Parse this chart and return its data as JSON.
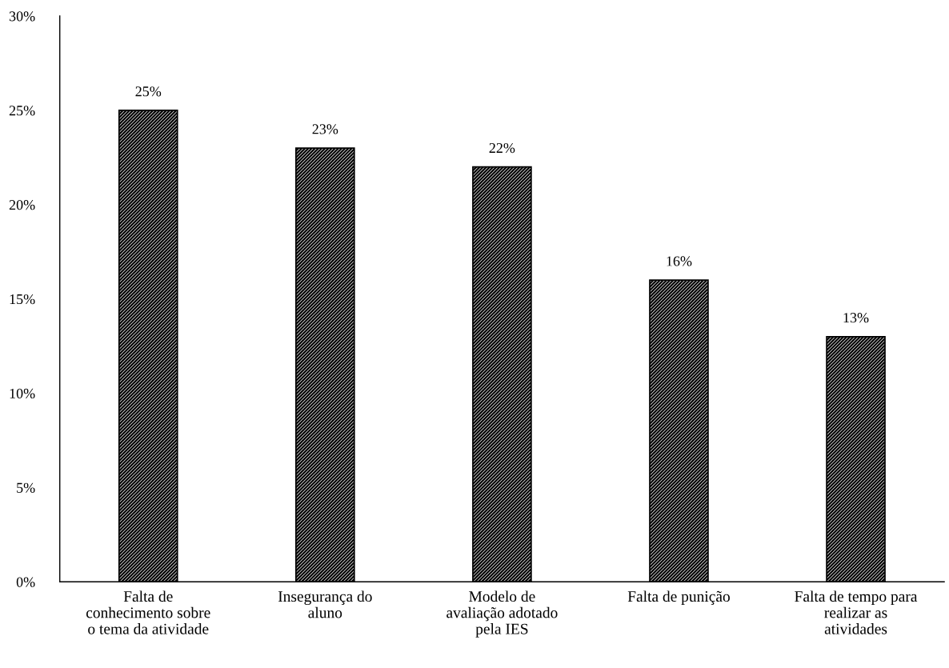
{
  "chart_data": {
    "type": "bar",
    "categories": [
      "Falta de\nconhecimento sobre\no tema da atividade",
      "Insegurança do\naluno",
      "Modelo de\navaliação adotado\npela IES",
      "Falta de punição",
      "Falta de tempo para\nrealizar as\natividades"
    ],
    "values": [
      25,
      23,
      22,
      16,
      13
    ],
    "value_labels": [
      "25%",
      "23%",
      "22%",
      "16%",
      "13%"
    ],
    "color": "#000000",
    "ylim": [
      0,
      30
    ],
    "yticks": [
      {
        "value": 0,
        "label": "0%"
      },
      {
        "value": 5,
        "label": "5%"
      },
      {
        "value": 10,
        "label": "10%"
      },
      {
        "value": 15,
        "label": "15%"
      },
      {
        "value": 20,
        "label": "20%"
      },
      {
        "value": 25,
        "label": "25%"
      },
      {
        "value": 30,
        "label": "30%"
      }
    ],
    "grid": false,
    "legend": false
  }
}
